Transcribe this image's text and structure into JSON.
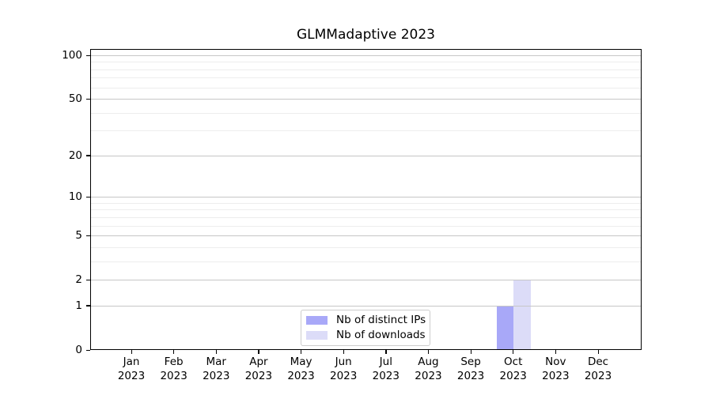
{
  "title": "GLMMadaptive 2023",
  "chart_data": {
    "type": "bar",
    "title": "GLMMadaptive 2023",
    "categories": [
      "Jan 2023",
      "Feb 2023",
      "Mar 2023",
      "Apr 2023",
      "May 2023",
      "Jun 2023",
      "Jul 2023",
      "Aug 2023",
      "Sep 2023",
      "Oct 2023",
      "Nov 2023",
      "Dec 2023"
    ],
    "series": [
      {
        "name": "Nb of distinct IPs",
        "color": "#a8a8f8",
        "values": [
          0,
          0,
          0,
          0,
          0,
          0,
          0,
          0,
          0,
          1,
          0,
          0
        ]
      },
      {
        "name": "Nb of downloads",
        "color": "#dcdcf8",
        "values": [
          0,
          0,
          0,
          0,
          0,
          0,
          0,
          0,
          0,
          2,
          0,
          0
        ]
      }
    ],
    "xlabel": "",
    "ylabel": "",
    "yscale": "log1p",
    "ylim": [
      0,
      110
    ],
    "y_tick_labels": [
      0,
      1,
      2,
      5,
      10,
      20,
      50,
      100
    ],
    "y_minor_gridlines": [
      3,
      4,
      6,
      7,
      8,
      9,
      30,
      40,
      60,
      70,
      80,
      90
    ],
    "grid": "horizontal",
    "legend_position": "lower-center"
  },
  "colors": {
    "background": "#ffffff",
    "bar_distinct_ips": "#a8a8f8",
    "bar_downloads": "#dcdcf8",
    "major_gridline": "#c6c6c6",
    "minor_gridline": "#ededed",
    "axis": "#000000",
    "legend_border": "#cccccc",
    "text": "#000000"
  }
}
